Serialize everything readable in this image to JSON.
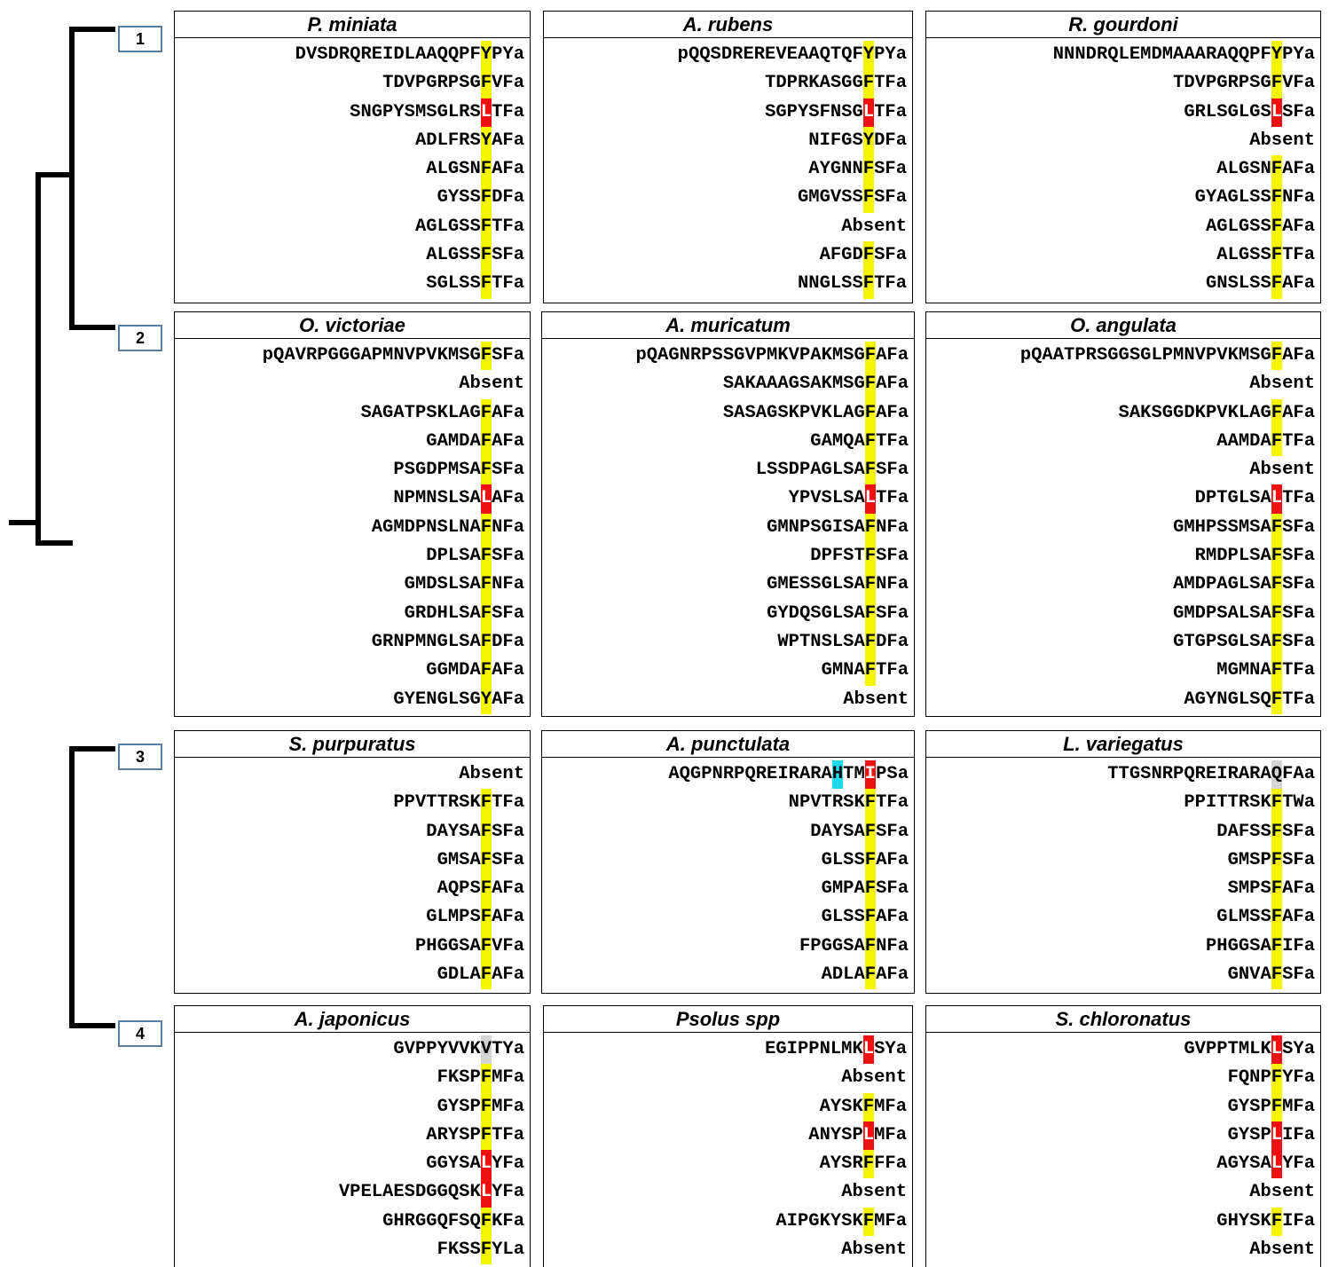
{
  "colors": {
    "yellow": "#f5f500",
    "red": "#ee1111",
    "cyan": "#22d8e8",
    "gray": "#d4d4d4",
    "label_border": "#5a7fa6"
  },
  "groups": [
    {
      "label": "1",
      "panels": [
        {
          "species": "P. miniata",
          "rows": [
            {
              "pre": "DVSDRQREIDLAAQQPF",
              "hl": "Y",
              "color": "yellow",
              "post": "PYa"
            },
            {
              "pre": "TDVPGRPSG",
              "hl": "F",
              "color": "yellow",
              "post": "VFa"
            },
            {
              "pre": "SNGPYSMSGLRS",
              "hl": "L",
              "color": "red",
              "post": "TFa"
            },
            {
              "pre": "ADLFRS",
              "hl": "Y",
              "color": "yellow",
              "post": "AFa"
            },
            {
              "pre": "ALGSN",
              "hl": "F",
              "color": "yellow",
              "post": "AFa"
            },
            {
              "pre": "GYSS",
              "hl": "F",
              "color": "yellow",
              "post": "DFa"
            },
            {
              "pre": "AGLGSS",
              "hl": "F",
              "color": "yellow",
              "post": "TFa"
            },
            {
              "pre": "ALGSS",
              "hl": "F",
              "color": "yellow",
              "post": "SFa"
            },
            {
              "pre": "SGLSS",
              "hl": "F",
              "color": "yellow",
              "post": "TFa"
            }
          ]
        },
        {
          "species": "A. rubens",
          "rows": [
            {
              "pre": "pQQSDREREVEAAQTQF",
              "hl": "Y",
              "color": "yellow",
              "post": "PYa"
            },
            {
              "pre": "TDPRKASGG",
              "hl": "F",
              "color": "yellow",
              "post": "TFa"
            },
            {
              "pre": "SGPYSFNSG",
              "hl": "L",
              "color": "red",
              "post": "TFa"
            },
            {
              "pre": "NIFGS",
              "hl": "Y",
              "color": "yellow",
              "post": "DFa"
            },
            {
              "pre": "AYGNN",
              "hl": "F",
              "color": "yellow",
              "post": "SFa"
            },
            {
              "pre": "GMGVSS",
              "hl": "F",
              "color": "yellow",
              "post": "SFa"
            },
            {
              "text": "Absent"
            },
            {
              "pre": "AFGD",
              "hl": "F",
              "color": "yellow",
              "post": "SFa"
            },
            {
              "pre": "NNGLSS",
              "hl": "F",
              "color": "yellow",
              "post": "TFa"
            }
          ]
        },
        {
          "species": "R. gourdoni",
          "rows": [
            {
              "pre": "NNNDRQLEMDMAAARAQQPF",
              "hl": "Y",
              "color": "yellow",
              "post": "PYa"
            },
            {
              "pre": "TDVPGRPSG",
              "hl": "F",
              "color": "yellow",
              "post": "VFa"
            },
            {
              "pre": "GRLSGLGS",
              "hl": "L",
              "color": "red",
              "post": "SFa"
            },
            {
              "text": "Absent"
            },
            {
              "pre": "ALGSN",
              "hl": "F",
              "color": "yellow",
              "post": "AFa"
            },
            {
              "pre": "GYAGLSS",
              "hl": "F",
              "color": "yellow",
              "post": "NFa"
            },
            {
              "pre": "AGLGSS",
              "hl": "F",
              "color": "yellow",
              "post": "AFa"
            },
            {
              "pre": "ALGSS",
              "hl": "F",
              "color": "yellow",
              "post": "TFa"
            },
            {
              "pre": "GNSLSS",
              "hl": "F",
              "color": "yellow",
              "post": "AFa"
            }
          ]
        }
      ]
    },
    {
      "label": "2",
      "panels": [
        {
          "species": "O. victoriae",
          "rows": [
            {
              "pre": "pQAVRPGGGAPMNVPVKMSG",
              "hl": "F",
              "color": "yellow",
              "post": "SFa"
            },
            {
              "text": "Absent"
            },
            {
              "pre": "SAGATPSKLAG",
              "hl": "F",
              "color": "yellow",
              "post": "AFa"
            },
            {
              "pre": "GAMDA",
              "hl": "F",
              "color": "yellow",
              "post": "AFa"
            },
            {
              "pre": "PSGDPMSA",
              "hl": "F",
              "color": "yellow",
              "post": "SFa"
            },
            {
              "pre": "NPMNSLSA",
              "hl": "L",
              "color": "red",
              "post": "AFa"
            },
            {
              "pre": "AGMDPNSLNA",
              "hl": "F",
              "color": "yellow",
              "post": "NFa"
            },
            {
              "pre": "DPLSA",
              "hl": "F",
              "color": "yellow",
              "post": "SFa"
            },
            {
              "pre": "GMDSLSA",
              "hl": "F",
              "color": "yellow",
              "post": "NFa"
            },
            {
              "pre": "GRDHLSA",
              "hl": "F",
              "color": "yellow",
              "post": "SFa"
            },
            {
              "pre": "GRNPMNGLSA",
              "hl": "F",
              "color": "yellow",
              "post": "DFa"
            },
            {
              "pre": "GGMDA",
              "hl": "F",
              "color": "yellow",
              "post": "AFa"
            },
            {
              "pre": "GYENGLSG",
              "hl": "Y",
              "color": "yellow",
              "post": "AFa"
            }
          ]
        },
        {
          "species": "A. muricatum",
          "rows": [
            {
              "pre": "pQAGNRPSSGVPMKVPAKMSG",
              "hl": "F",
              "color": "yellow",
              "post": "AFa"
            },
            {
              "pre": "SAKAAAGSAKMSG",
              "hl": "F",
              "color": "yellow",
              "post": "AFa"
            },
            {
              "pre": "SASAGSKPVKLAG",
              "hl": "F",
              "color": "yellow",
              "post": "AFa"
            },
            {
              "pre": "GAMQA",
              "hl": "F",
              "color": "yellow",
              "post": "TFa"
            },
            {
              "pre": "LSSDPAGLSA",
              "hl": "F",
              "color": "yellow",
              "post": "SFa"
            },
            {
              "pre": "YPVSLSA",
              "hl": "L",
              "color": "red",
              "post": "TFa"
            },
            {
              "pre": "GMNPSGISA",
              "hl": "F",
              "color": "yellow",
              "post": "NFa"
            },
            {
              "pre": "DPFST",
              "hl": "F",
              "color": "yellow",
              "post": "SFa"
            },
            {
              "pre": "GMESSGLSA",
              "hl": "F",
              "color": "yellow",
              "post": "NFa"
            },
            {
              "pre": "GYDQSGLSA",
              "hl": "F",
              "color": "yellow",
              "post": "SFa"
            },
            {
              "pre": "WPTNSLSA",
              "hl": "F",
              "color": "yellow",
              "post": "DFa"
            },
            {
              "pre": "GMNA",
              "hl": "F",
              "color": "yellow",
              "post": "TFa"
            },
            {
              "text": "Absent"
            }
          ]
        },
        {
          "species": "O. angulata",
          "rows": [
            {
              "pre": "pQAATPRSGGSGLPMNVPVKMSG",
              "hl": "F",
              "color": "yellow",
              "post": "AFa"
            },
            {
              "text": "Absent"
            },
            {
              "pre": "SAKSGGDKPVKLAG",
              "hl": "F",
              "color": "yellow",
              "post": "AFa"
            },
            {
              "pre": "AAMDA",
              "hl": "F",
              "color": "yellow",
              "post": "TFa"
            },
            {
              "text": "Absent"
            },
            {
              "pre": "DPTGLSA",
              "hl": "L",
              "color": "red",
              "post": "TFa"
            },
            {
              "pre": "GMHPSSMSA",
              "hl": "F",
              "color": "yellow",
              "post": "SFa"
            },
            {
              "pre": "RMDPLSA",
              "hl": "F",
              "color": "yellow",
              "post": "SFa"
            },
            {
              "pre": "AMDPAGLSA",
              "hl": "F",
              "color": "yellow",
              "post": "SFa"
            },
            {
              "pre": "GMDPSALSA",
              "hl": "F",
              "color": "yellow",
              "post": "SFa"
            },
            {
              "pre": "GTGPSGLSA",
              "hl": "F",
              "color": "yellow",
              "post": "SFa"
            },
            {
              "pre": "MGMNA",
              "hl": "F",
              "color": "yellow",
              "post": "TFa"
            },
            {
              "pre": "AGYNGLSQ",
              "hl": "F",
              "color": "yellow",
              "post": "TFa"
            }
          ]
        }
      ]
    },
    {
      "label": "3",
      "panels": [
        {
          "species": "S. purpuratus",
          "rows": [
            {
              "text": "Absent"
            },
            {
              "pre": "PPVTTRSK",
              "hl": "F",
              "color": "yellow",
              "post": "TFa"
            },
            {
              "pre": "DAYSA",
              "hl": "F",
              "color": "yellow",
              "post": "SFa"
            },
            {
              "pre": "GMSA",
              "hl": "F",
              "color": "yellow",
              "post": "SFa"
            },
            {
              "pre": "AQPS",
              "hl": "F",
              "color": "yellow",
              "post": "AFa"
            },
            {
              "pre": "GLMPS",
              "hl": "F",
              "color": "yellow",
              "post": "AFa"
            },
            {
              "pre": "PHGGSA",
              "hl": "F",
              "color": "yellow",
              "post": "VFa"
            },
            {
              "pre": "GDLA",
              "hl": "F",
              "color": "yellow",
              "post": "AFa"
            }
          ]
        },
        {
          "species": "A. punctulata",
          "rows": [
            {
              "pre": "AQGPNRPQREIRARA",
              "hl": "H",
              "color": "cyan",
              "mid": "TM",
              "hl2": "I",
              "color2": "red",
              "post": "PSa"
            },
            {
              "pre": "NPVTRSK",
              "hl": "F",
              "color": "yellow",
              "post": "TFa"
            },
            {
              "pre": "DAYSA",
              "hl": "F",
              "color": "yellow",
              "post": "SFa"
            },
            {
              "pre": "GLSS",
              "hl": "F",
              "color": "yellow",
              "post": "AFa"
            },
            {
              "pre": "GMPA",
              "hl": "F",
              "color": "yellow",
              "post": "SFa"
            },
            {
              "pre": "GLSS",
              "hl": "F",
              "color": "yellow",
              "post": "AFa"
            },
            {
              "pre": "FPGGSA",
              "hl": "F",
              "color": "yellow",
              "post": "NFa"
            },
            {
              "pre": "ADLA",
              "hl": "F",
              "color": "yellow",
              "post": "AFa"
            }
          ]
        },
        {
          "species": "L. variegatus",
          "rows": [
            {
              "pre": "TTGSNRPQREIRARA",
              "hl": "Q",
              "color": "gray",
              "post": "FAa"
            },
            {
              "pre": "PPITTRSK",
              "hl": "F",
              "color": "yellow",
              "post": "TWa"
            },
            {
              "pre": "DAFSS",
              "hl": "F",
              "color": "yellow",
              "post": "SFa"
            },
            {
              "pre": "GMSP",
              "hl": "F",
              "color": "yellow",
              "post": "SFa"
            },
            {
              "pre": "SMPS",
              "hl": "F",
              "color": "yellow",
              "post": "AFa"
            },
            {
              "pre": "GLMSS",
              "hl": "F",
              "color": "yellow",
              "post": "AFa"
            },
            {
              "pre": "PHGGSA",
              "hl": "F",
              "color": "yellow",
              "post": "IFa"
            },
            {
              "pre": "GNVA",
              "hl": "F",
              "color": "yellow",
              "post": "SFa"
            }
          ]
        }
      ]
    },
    {
      "label": "4",
      "panels": [
        {
          "species": "A. japonicus",
          "rows": [
            {
              "pre": "GVPPYVVK",
              "hl": "V",
              "color": "gray",
              "post": "TYa"
            },
            {
              "pre": "FKSP",
              "hl": "F",
              "color": "yellow",
              "post": "MFa"
            },
            {
              "pre": "GYSP",
              "hl": "F",
              "color": "yellow",
              "post": "MFa"
            },
            {
              "pre": "ARYSP",
              "hl": "F",
              "color": "yellow",
              "post": "TFa"
            },
            {
              "pre": "GGYSA",
              "hl": "L",
              "color": "red",
              "post": "YFa"
            },
            {
              "pre": "VPELAESDGGQSK",
              "hl": "L",
              "color": "red",
              "post": "YFa"
            },
            {
              "pre": "GHRGGQFSQ",
              "hl": "F",
              "color": "yellow",
              "post": "KFa"
            },
            {
              "pre": "FKSS",
              "hl": "F",
              "color": "yellow",
              "post": "YLa"
            }
          ]
        },
        {
          "species": "Psolus spp",
          "rows": [
            {
              "pre": "EGIPPNLMK",
              "hl": "L",
              "color": "red",
              "post": "SYa"
            },
            {
              "text": "Absent"
            },
            {
              "pre": "AYSK",
              "hl": "F",
              "color": "yellow",
              "post": "MFa"
            },
            {
              "pre": "ANYSP",
              "hl": "L",
              "color": "red",
              "post": "MFa"
            },
            {
              "pre": "AYSR",
              "hl": "F",
              "color": "yellow",
              "post": "FFa"
            },
            {
              "text": "Absent"
            },
            {
              "pre": "AIPGKYSK",
              "hl": "F",
              "color": "yellow",
              "post": "MFa"
            },
            {
              "text": "Absent"
            }
          ]
        },
        {
          "species": "S. chloronatus",
          "rows": [
            {
              "pre": "GVPPTMLK",
              "hl": "L",
              "color": "red",
              "post": "SYa"
            },
            {
              "pre": "FQNP",
              "hl": "F",
              "color": "yellow",
              "post": "YFa"
            },
            {
              "pre": "GYSP",
              "hl": "F",
              "color": "yellow",
              "post": "MFa"
            },
            {
              "pre": "GYSP",
              "hl": "L",
              "color": "red",
              "post": "IFa"
            },
            {
              "pre": "AGYSA",
              "hl": "L",
              "color": "red",
              "post": "YFa"
            },
            {
              "text": "Absent"
            },
            {
              "pre": "GHYSK",
              "hl": "F",
              "color": "yellow",
              "post": "IFa"
            },
            {
              "text": "Absent"
            }
          ]
        }
      ]
    }
  ]
}
